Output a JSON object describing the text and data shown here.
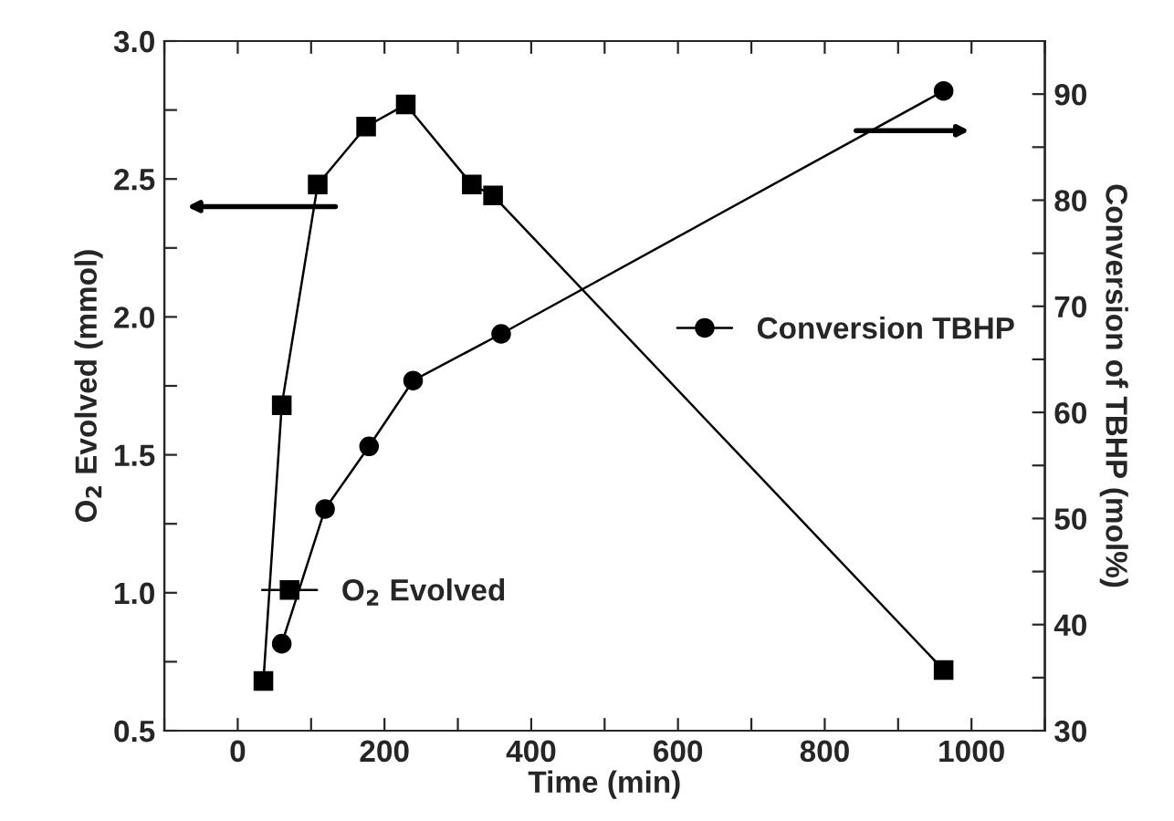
{
  "chart_data": {
    "type": "line",
    "xlabel": "Time (min)",
    "ylabel": "O$_{2}$ Evolved (mmol)",
    "y2label": "Conversion of TBHP (mol%)",
    "xlim": [
      -100,
      1100
    ],
    "xticks": [
      {
        "value": -100,
        "label": null
      },
      0,
      {
        "value": 100,
        "label": null
      },
      200,
      {
        "value": 300,
        "label": null
      },
      400,
      {
        "value": 500,
        "label": null
      },
      600,
      {
        "value": 700,
        "label": null
      },
      800,
      {
        "value": 900,
        "label": null
      },
      1000,
      {
        "value": 1100,
        "label": null
      }
    ],
    "ylim": [
      0.5,
      3.0
    ],
    "yticks": [
      0.5,
      {
        "value": 0.75,
        "label": null
      },
      {
        "value": 1,
        "label": "1.0"
      },
      {
        "value": 1.25,
        "label": null
      },
      1.5,
      {
        "value": 1.75,
        "label": null
      },
      {
        "value": 2,
        "label": "2.0"
      },
      {
        "value": 2.25,
        "label": null
      },
      2.5,
      {
        "value": 2.75,
        "label": null
      },
      {
        "value": 3,
        "label": "3.0"
      }
    ],
    "y2lim": [
      30,
      95
    ],
    "y2ticks": [
      30,
      {
        "value": 35,
        "label": null
      },
      40,
      {
        "value": 45,
        "label": null
      },
      50,
      {
        "value": 55,
        "label": null
      },
      60,
      {
        "value": 65,
        "label": null
      },
      70,
      {
        "value": 75,
        "label": null
      },
      80,
      {
        "value": 85,
        "label": null
      },
      90
    ],
    "legend": "right",
    "grid": false,
    "line_style": "solid",
    "series": [
      {
        "name": "O$_{2}$ Evolved",
        "color": "#000000",
        "marker": "square",
        "x": [
          35,
          60,
          109,
          175,
          229,
          319,
          348,
          962
        ],
        "values": [
          0.68,
          1.68,
          2.48,
          2.69,
          2.77,
          2.48,
          2.44,
          0.72
        ]
      },
      {
        "name": "Conversion TBHP",
        "color": "#000000",
        "marker": "circle",
        "axis": "y2",
        "x": [
          60,
          119,
          179,
          239,
          359,
          962
        ],
        "values": [
          38.2,
          50.9,
          56.8,
          63.0,
          67.4,
          90.3
        ]
      }
    ]
  }
}
